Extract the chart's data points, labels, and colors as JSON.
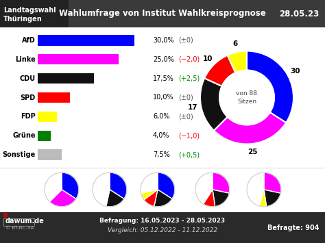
{
  "title_left": "Landtagswahl\nThüringen",
  "title_center": "Wahlumfrage von Institut Wahlkreisprognose",
  "title_right": "28.05.23",
  "header_bg": "#3a3a3a",
  "footer_bg": "#2a2a2a",
  "parties": [
    "AfD",
    "Linke",
    "CDU",
    "SPD",
    "FDP",
    "Grüne",
    "Sonstige"
  ],
  "values": [
    30.0,
    25.0,
    17.5,
    10.0,
    6.0,
    4.0,
    7.5
  ],
  "changes": [
    "±0",
    "−2,0",
    "+2,5",
    "±0",
    "±0",
    "−1,0",
    "+0,5"
  ],
  "change_colors": [
    "#555555",
    "#ff0000",
    "#008800",
    "#555555",
    "#555555",
    "#ff0000",
    "#008800"
  ],
  "bar_colors": [
    "#0000ff",
    "#ff00ff",
    "#111111",
    "#ff0000",
    "#ffff00",
    "#008000",
    "#bbbbbb"
  ],
  "seats": [
    30,
    25,
    17,
    10,
    6,
    0,
    0
  ],
  "seats_labels": [
    30,
    25,
    17,
    10,
    6
  ],
  "donut_colors": [
    "#0000ff",
    "#ff00ff",
    "#111111",
    "#ff0000",
    "#ffff00"
  ],
  "donut_center_text": "von 88\nSitzen",
  "total_seats": 88,
  "footer_left": "dawum.de",
  "footer_center_line1": "Befragung: 16.05.2023 - 28.05.2023",
  "footer_center_line2": "Vergleich: 05.12.2022 - 11.12.2022",
  "footer_right": "Befragte: 904",
  "small_pies": [
    {
      "slices": [
        30,
        25,
        33
      ],
      "colors": [
        "#0000ff",
        "#ff00ff",
        "#ffffff"
      ]
    },
    {
      "slices": [
        30,
        17,
        41
      ],
      "colors": [
        "#0000ff",
        "#111111",
        "#ffffff"
      ]
    },
    {
      "slices": [
        30,
        17,
        10,
        6,
        25
      ],
      "colors": [
        "#0000ff",
        "#111111",
        "#ff0000",
        "#ffff00",
        "#ffffff"
      ]
    },
    {
      "slices": [
        25,
        17,
        10,
        36
      ],
      "colors": [
        "#ff00ff",
        "#111111",
        "#ff0000",
        "#ffffff"
      ]
    },
    {
      "slices": [
        25,
        17,
        6,
        40
      ],
      "colors": [
        "#ff00ff",
        "#111111",
        "#ffff00",
        "#ffffff"
      ]
    }
  ],
  "bg_color": "#ffffff",
  "main_bg": "#f8f8f8"
}
